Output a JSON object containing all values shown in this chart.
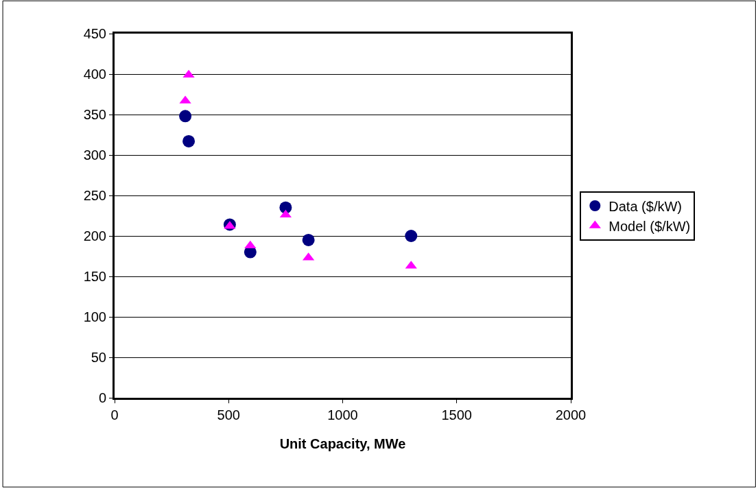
{
  "chart_data": {
    "type": "scatter",
    "xlabel": "Unit Capacity, MWe",
    "series": [
      {
        "name": "Data ($/kW)",
        "color": "#000080",
        "marker": "circle",
        "x": [
          310,
          325,
          505,
          595,
          750,
          850,
          1300
        ],
        "values": [
          348,
          317,
          214,
          180,
          235,
          195,
          200
        ]
      },
      {
        "name": "Model ($/kW)",
        "color": "#ff00ff",
        "marker": "triangle",
        "x": [
          310,
          325,
          505,
          595,
          750,
          850,
          1300
        ],
        "values": [
          367,
          399,
          212,
          188,
          226,
          173,
          163
        ]
      }
    ],
    "xlim": [
      0,
      2000
    ],
    "xticks": [
      0,
      500,
      1000,
      1500,
      2000
    ],
    "ylim": [
      0,
      450
    ],
    "yticks": [
      0,
      50,
      100,
      150,
      200,
      250,
      300,
      350,
      400,
      450
    ],
    "grid": "y",
    "legend": "right"
  }
}
